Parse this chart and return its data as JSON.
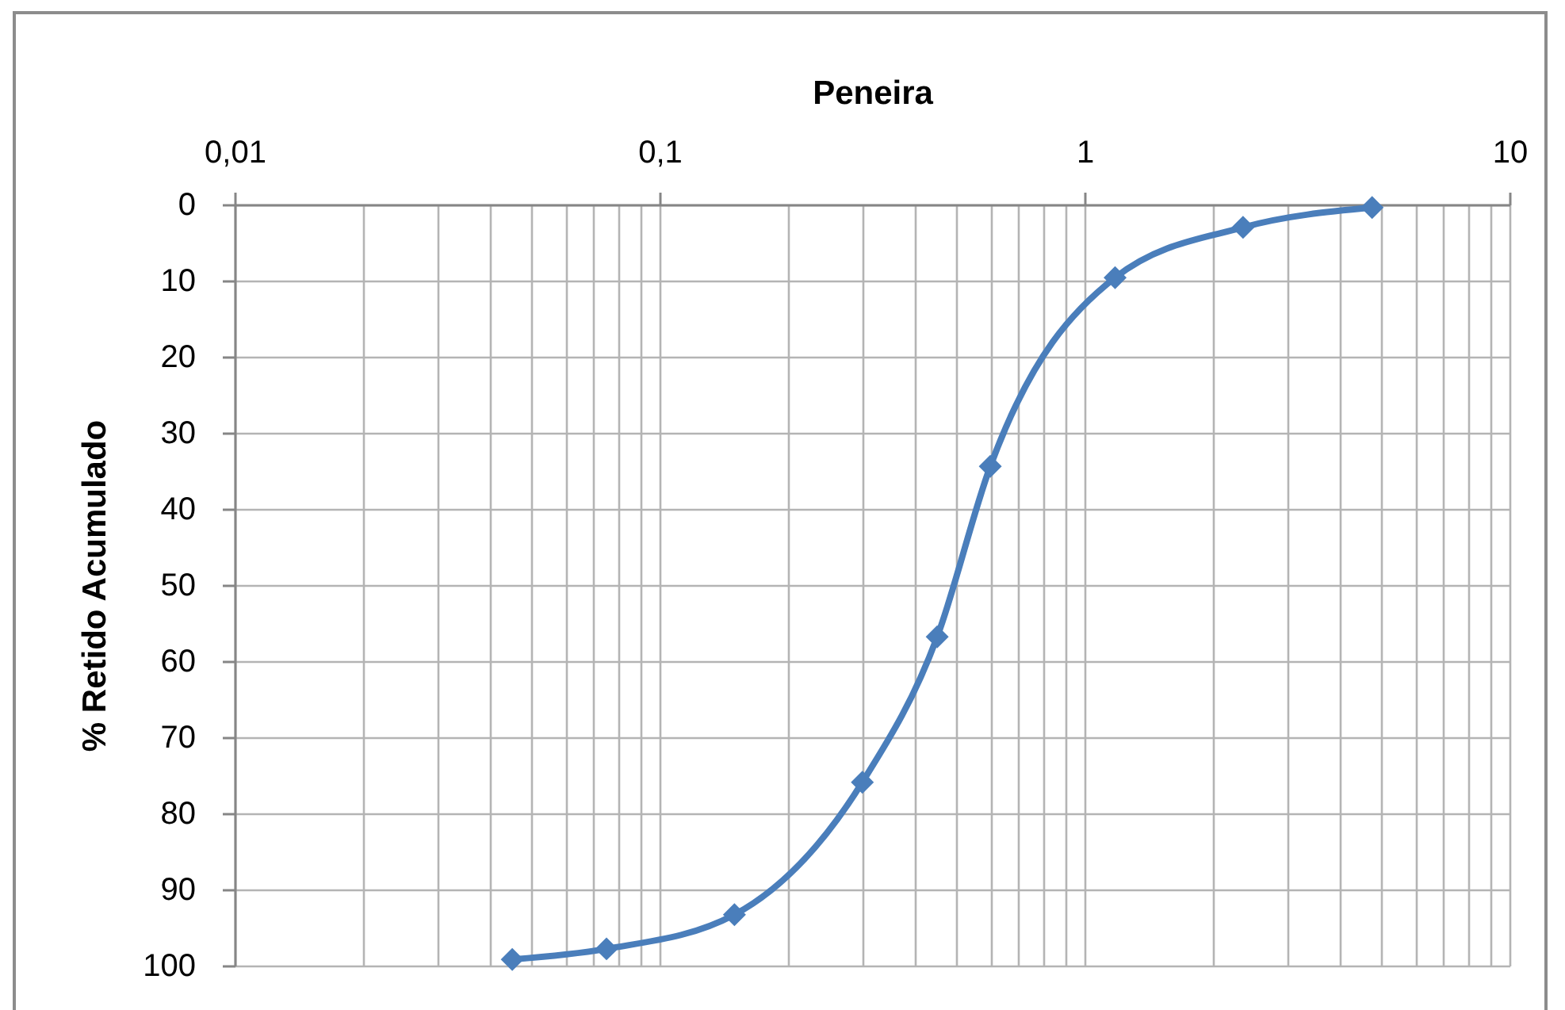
{
  "chart_data": {
    "type": "line",
    "xlabel": "Peneira",
    "ylabel": "% Retido Acumulado",
    "x": [
      0.045,
      0.075,
      0.15,
      0.3,
      0.45,
      0.6,
      1.18,
      2.36,
      4.75
    ],
    "series": [
      {
        "color": "#4a7ebb",
        "values": [
          99.2,
          97.8,
          93.3,
          75.9,
          56.8,
          34.4,
          9.6,
          3.0,
          0.4
        ]
      }
    ],
    "log": "x",
    "xlim": [
      0.01,
      10
    ],
    "xticks": [
      {
        "value": 0.01,
        "label": "0,01"
      },
      {
        "value": 0.02,
        "label": null
      },
      {
        "value": 0.03,
        "label": null
      },
      {
        "value": 0.04,
        "label": null
      },
      {
        "value": 0.05,
        "label": null
      },
      {
        "value": 0.06,
        "label": null
      },
      {
        "value": 0.07,
        "label": null
      },
      {
        "value": 0.08,
        "label": null
      },
      {
        "value": 0.09,
        "label": null
      },
      {
        "value": 0.1,
        "label": "0,1"
      },
      {
        "value": 0.2,
        "label": null
      },
      {
        "value": 0.3,
        "label": null
      },
      {
        "value": 0.4,
        "label": null
      },
      {
        "value": 0.5,
        "label": null
      },
      {
        "value": 0.6,
        "label": null
      },
      {
        "value": 0.7,
        "label": null
      },
      {
        "value": 0.8,
        "label": null
      },
      {
        "value": 0.9,
        "label": null
      },
      1,
      {
        "value": 2,
        "label": null
      },
      {
        "value": 3,
        "label": null
      },
      {
        "value": 4,
        "label": null
      },
      {
        "value": 5,
        "label": null
      },
      {
        "value": 6,
        "label": null
      },
      {
        "value": 7,
        "label": null
      },
      {
        "value": 8,
        "label": null
      },
      {
        "value": 9,
        "label": null
      },
      10
    ],
    "ylim": [
      100,
      0
    ],
    "yticks": [
      0,
      10,
      20,
      30,
      40,
      50,
      60,
      70,
      80,
      90,
      100
    ],
    "grid": true,
    "marker": "diamond",
    "legend": false
  }
}
